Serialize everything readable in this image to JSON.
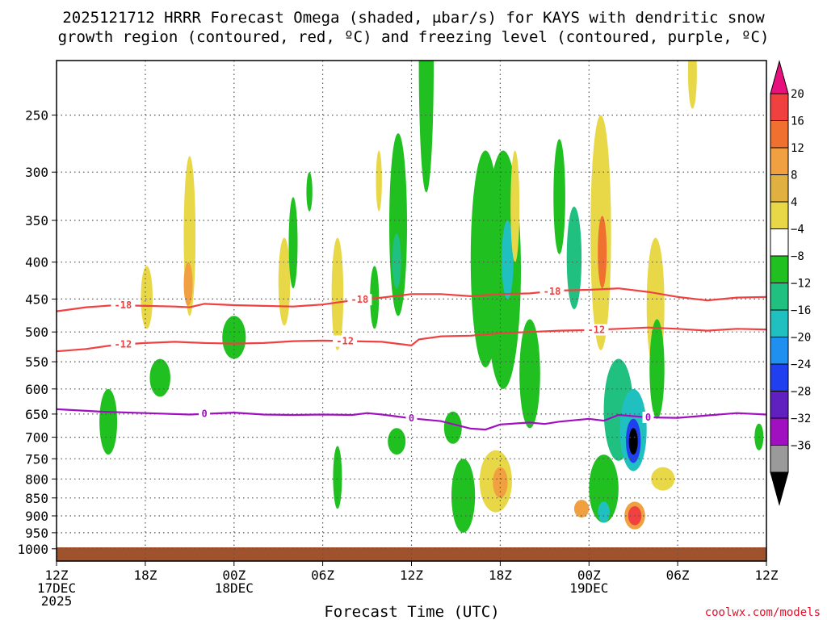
{
  "chart_data": {
    "type": "heatmap",
    "title_line1": "2025121712 HRRR Forecast Omega (shaded, μbar/s) for KAYS with dendritic snow",
    "title_line2": "growth region (contoured, red, ºC) and freezing level (contoured, purple, ºC)",
    "xlabel": "Forecast Time (UTC)",
    "ylabel": "",
    "x_units": "forecast hour",
    "xlim": [
      0,
      48
    ],
    "y_units": "hPa",
    "ylim": [
      1040,
      210
    ],
    "y_ticks": [
      250,
      300,
      350,
      400,
      450,
      500,
      550,
      600,
      650,
      700,
      750,
      800,
      850,
      900,
      950,
      1000
    ],
    "x_ticks": [
      {
        "hour": 0,
        "lines": [
          "12Z",
          "17DEC",
          "2025"
        ]
      },
      {
        "hour": 6,
        "lines": [
          "18Z"
        ]
      },
      {
        "hour": 12,
        "lines": [
          "00Z",
          "18DEC"
        ]
      },
      {
        "hour": 18,
        "lines": [
          "06Z"
        ]
      },
      {
        "hour": 24,
        "lines": [
          "12Z"
        ]
      },
      {
        "hour": 30,
        "lines": [
          "18Z"
        ]
      },
      {
        "hour": 36,
        "lines": [
          "00Z",
          "19DEC"
        ]
      },
      {
        "hour": 42,
        "lines": [
          "06Z"
        ]
      },
      {
        "hour": 48,
        "lines": [
          "12Z"
        ]
      }
    ],
    "colorbar": {
      "labels": [
        "20",
        "16",
        "12",
        "8",
        "4",
        "−4",
        "−8",
        "−12",
        "−16",
        "−20",
        "−24",
        "−28",
        "−32",
        "−36"
      ],
      "colors": [
        "#e8107c",
        "#f04040",
        "#f07030",
        "#f0a040",
        "#e0b040",
        "#e8d848",
        "#ffffff",
        "#20c020",
        "#20c080",
        "#20c0c0",
        "#2090f0",
        "#2040f0",
        "#6020c0",
        "#a010c0",
        "#9a9a9a",
        "#000000"
      ]
    },
    "contours": [
      {
        "name": "dgz-18",
        "label": "-18",
        "color": "#f04040",
        "points": [
          [
            0,
            468
          ],
          [
            2,
            462
          ],
          [
            4,
            459
          ],
          [
            6,
            460
          ],
          [
            8,
            461
          ],
          [
            9,
            462
          ],
          [
            10,
            457
          ],
          [
            12,
            459
          ],
          [
            14,
            460
          ],
          [
            16,
            461
          ],
          [
            18,
            458
          ],
          [
            20,
            452
          ],
          [
            22,
            448
          ],
          [
            24,
            443
          ],
          [
            26,
            443
          ],
          [
            28,
            446
          ],
          [
            30,
            443
          ],
          [
            32,
            442
          ],
          [
            34,
            438
          ],
          [
            36,
            437
          ],
          [
            38,
            435
          ],
          [
            40,
            440
          ],
          [
            42,
            447
          ],
          [
            44,
            452
          ],
          [
            46,
            448
          ],
          [
            48,
            447
          ]
        ],
        "label_hours": [
          4.5,
          20.5,
          33.5
        ]
      },
      {
        "name": "dgz-12",
        "label": "-12",
        "color": "#f04040",
        "points": [
          [
            0,
            532
          ],
          [
            2,
            528
          ],
          [
            4,
            521
          ],
          [
            6,
            518
          ],
          [
            8,
            516
          ],
          [
            10,
            518
          ],
          [
            12,
            519
          ],
          [
            14,
            518
          ],
          [
            16,
            515
          ],
          [
            18,
            514
          ],
          [
            20,
            515
          ],
          [
            22,
            516
          ],
          [
            24,
            522
          ],
          [
            24.5,
            512
          ],
          [
            26,
            507
          ],
          [
            28,
            506
          ],
          [
            30,
            502
          ],
          [
            32,
            500
          ],
          [
            34,
            498
          ],
          [
            36,
            497
          ],
          [
            38,
            495
          ],
          [
            40,
            493
          ],
          [
            42,
            495
          ],
          [
            44,
            498
          ],
          [
            46,
            495
          ],
          [
            48,
            496
          ]
        ],
        "label_hours": [
          4.5,
          19.5,
          36.5
        ]
      },
      {
        "name": "freezing-level",
        "label": "0",
        "color": "#a010c0",
        "points": [
          [
            0,
            640
          ],
          [
            3,
            645
          ],
          [
            6,
            648
          ],
          [
            9,
            651
          ],
          [
            12,
            647
          ],
          [
            14,
            651
          ],
          [
            16,
            652
          ],
          [
            18,
            651
          ],
          [
            20,
            652
          ],
          [
            21,
            648
          ],
          [
            22,
            651
          ],
          [
            24,
            659
          ],
          [
            26,
            665
          ],
          [
            28,
            681
          ],
          [
            29,
            683
          ],
          [
            30,
            672
          ],
          [
            32,
            668
          ],
          [
            33,
            671
          ],
          [
            34,
            666
          ],
          [
            36,
            660
          ],
          [
            37,
            664
          ],
          [
            38,
            652
          ],
          [
            40,
            657
          ],
          [
            42,
            658
          ],
          [
            44,
            653
          ],
          [
            46,
            648
          ],
          [
            48,
            651
          ]
        ],
        "label_hours": [
          10,
          24,
          40
        ]
      }
    ],
    "omega_blobs": [
      {
        "hour": 3.5,
        "p": 670,
        "dh": 0.6,
        "dp": 140,
        "value": -6
      },
      {
        "hour": 6.1,
        "p": 450,
        "dh": 0.4,
        "dp": 90,
        "value": 5
      },
      {
        "hour": 7.0,
        "p": 580,
        "dh": 0.7,
        "dp": 70,
        "value": -6
      },
      {
        "hour": 9.0,
        "p": 380,
        "dh": 0.4,
        "dp": 190,
        "value": 5
      },
      {
        "hour": 8.9,
        "p": 430,
        "dh": 0.3,
        "dp": 60,
        "value": 9
      },
      {
        "hour": 12.0,
        "p": 510,
        "dh": 0.8,
        "dp": 70,
        "value": -6
      },
      {
        "hour": 15.4,
        "p": 430,
        "dh": 0.4,
        "dp": 120,
        "value": 5
      },
      {
        "hour": 16.0,
        "p": 380,
        "dh": 0.3,
        "dp": 110,
        "value": -6
      },
      {
        "hour": 17.1,
        "p": 320,
        "dh": 0.2,
        "dp": 40,
        "value": -6
      },
      {
        "hour": 19.0,
        "p": 450,
        "dh": 0.4,
        "dp": 160,
        "value": 5
      },
      {
        "hour": 19.0,
        "p": 800,
        "dh": 0.3,
        "dp": 160,
        "value": -6
      },
      {
        "hour": 21.8,
        "p": 310,
        "dh": 0.2,
        "dp": 60,
        "value": 5
      },
      {
        "hour": 21.5,
        "p": 450,
        "dh": 0.3,
        "dp": 90,
        "value": -6
      },
      {
        "hour": 23.1,
        "p": 370,
        "dh": 0.6,
        "dp": 210,
        "value": -6
      },
      {
        "hour": 23.0,
        "p": 400,
        "dh": 0.3,
        "dp": 70,
        "value": -10
      },
      {
        "hour": 23.0,
        "p": 710,
        "dh": 0.6,
        "dp": 60,
        "value": -6
      },
      {
        "hour": 25.0,
        "p": 230,
        "dh": 0.5,
        "dp": 180,
        "value": -6
      },
      {
        "hour": 26.8,
        "p": 680,
        "dh": 0.6,
        "dp": 70,
        "value": -6
      },
      {
        "hour": 27.5,
        "p": 850,
        "dh": 0.8,
        "dp": 200,
        "value": -6
      },
      {
        "hour": 29.0,
        "p": 420,
        "dh": 1.0,
        "dp": 280,
        "value": -6
      },
      {
        "hour": 30.2,
        "p": 440,
        "dh": 1.2,
        "dp": 320,
        "value": -7
      },
      {
        "hour": 30.5,
        "p": 400,
        "dh": 0.4,
        "dp": 100,
        "value": -12
      },
      {
        "hour": 29.7,
        "p": 810,
        "dh": 1.1,
        "dp": 160,
        "value": 6
      },
      {
        "hour": 30.0,
        "p": 810,
        "dh": 0.5,
        "dp": 80,
        "value": 10
      },
      {
        "hour": 31.0,
        "p": 340,
        "dh": 0.3,
        "dp": 120,
        "value": 5
      },
      {
        "hour": 32.0,
        "p": 580,
        "dh": 0.7,
        "dp": 200,
        "value": -6
      },
      {
        "hour": 34.0,
        "p": 330,
        "dh": 0.4,
        "dp": 120,
        "value": -6
      },
      {
        "hour": 35.0,
        "p": 400,
        "dh": 0.5,
        "dp": 130,
        "value": -9
      },
      {
        "hour": 35.5,
        "p": 880,
        "dh": 0.5,
        "dp": 50,
        "value": 8
      },
      {
        "hour": 36.8,
        "p": 390,
        "dh": 0.7,
        "dp": 280,
        "value": 7
      },
      {
        "hour": 36.9,
        "p": 390,
        "dh": 0.3,
        "dp": 90,
        "value": 14
      },
      {
        "hour": 37.0,
        "p": 830,
        "dh": 1.0,
        "dp": 180,
        "value": -7
      },
      {
        "hour": 37.0,
        "p": 890,
        "dh": 0.4,
        "dp": 60,
        "value": -14
      },
      {
        "hour": 38.0,
        "p": 650,
        "dh": 1.0,
        "dp": 210,
        "value": -8
      },
      {
        "hour": 39.0,
        "p": 690,
        "dh": 0.9,
        "dp": 180,
        "value": -14
      },
      {
        "hour": 39.0,
        "p": 710,
        "dh": 0.5,
        "dp": 100,
        "value": -22
      },
      {
        "hour": 39.0,
        "p": 710,
        "dh": 0.3,
        "dp": 60,
        "value": -36
      },
      {
        "hour": 39.1,
        "p": 900,
        "dh": 0.7,
        "dp": 80,
        "value": 8
      },
      {
        "hour": 39.1,
        "p": 900,
        "dh": 0.45,
        "dp": 55,
        "value": 18
      },
      {
        "hour": 40.5,
        "p": 470,
        "dh": 0.6,
        "dp": 200,
        "value": 6
      },
      {
        "hour": 40.6,
        "p": 570,
        "dh": 0.5,
        "dp": 180,
        "value": -6
      },
      {
        "hour": 41.0,
        "p": 800,
        "dh": 0.8,
        "dp": 60,
        "value": 5
      },
      {
        "hour": 43.0,
        "p": 220,
        "dh": 0.3,
        "dp": 50,
        "value": 5
      },
      {
        "hour": 47.5,
        "p": 700,
        "dh": 0.3,
        "dp": 60,
        "value": -6
      }
    ]
  },
  "credit": "coolwx.com/models"
}
